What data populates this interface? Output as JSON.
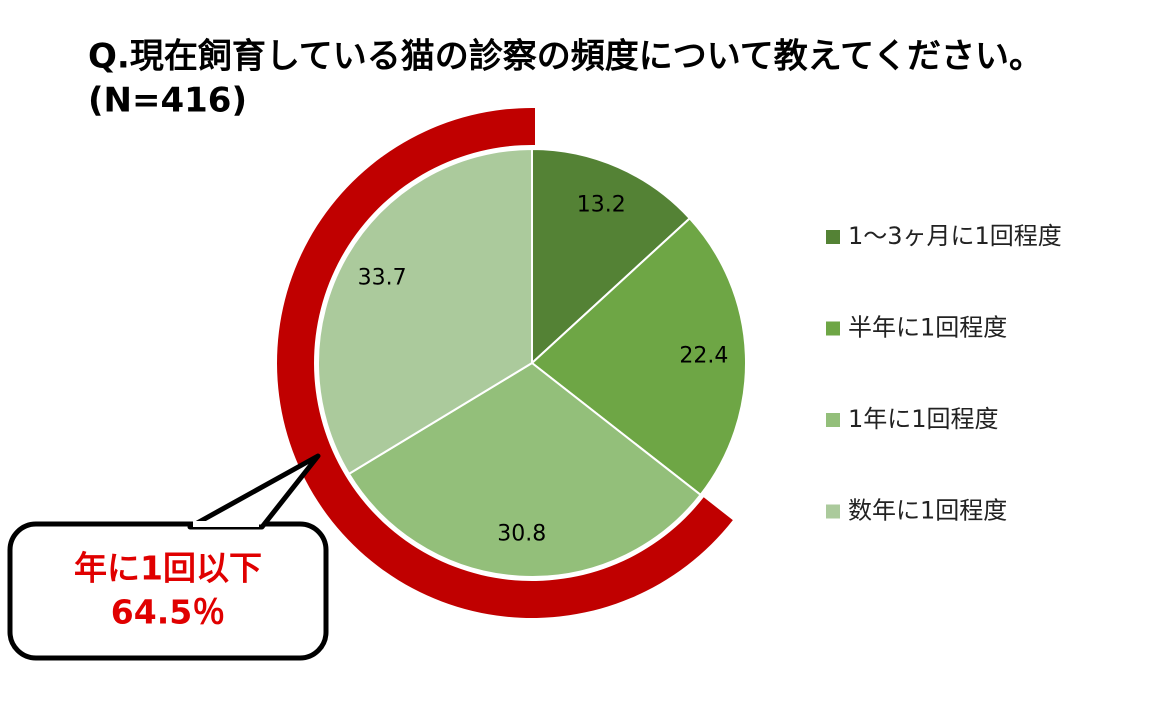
{
  "chart_data": {
    "type": "pie",
    "title": [
      "Q.現在飼育している猫の診察の頻度について教えてください。",
      "(N=416)"
    ],
    "categories": [
      "1～3ヶ月に1回程度",
      "半年に1回程度",
      "1年に1回程度",
      "数年に1回程度"
    ],
    "values": [
      13.2,
      22.4,
      30.8,
      33.7
    ],
    "colors": [
      "#548235",
      "#6ea645",
      "#93bf7a",
      "#abca9c"
    ],
    "annotation": [
      "年に1回以下",
      "64.5％"
    ],
    "annotation_color": "#e00000",
    "highlight_color": "#c00000"
  }
}
